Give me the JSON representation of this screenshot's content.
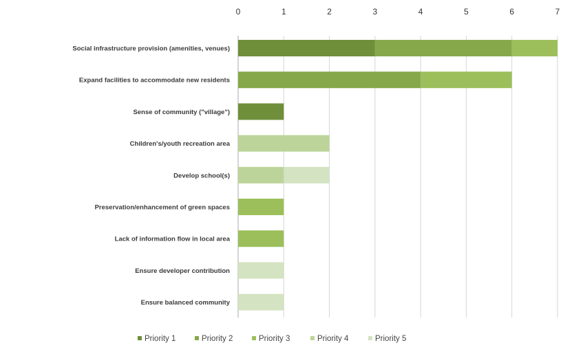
{
  "chart_data": {
    "type": "bar",
    "orientation": "horizontal",
    "stacked": true,
    "title": "",
    "xlabel": "",
    "ylabel": "",
    "xlim": [
      0,
      7
    ],
    "x_ticks": [
      "0",
      "1",
      "2",
      "3",
      "4",
      "5",
      "6",
      "7"
    ],
    "x_axis_position": "top",
    "grid": true,
    "legend_position": "bottom",
    "categories": [
      "Social infrastructure provision (amenities, venues)",
      "Expand facilities to accommodate new residents",
      "Sense of community (\"village\")",
      "Children's/youth recreation area",
      "Develop school(s)",
      "Preservation/enhancement of green spaces",
      "Lack of information flow in local area",
      "Ensure developer contribution",
      "Ensure balanced community"
    ],
    "series": [
      {
        "name": "Priority 1",
        "color": "#6f8f3a",
        "values": [
          3,
          0,
          1,
          0,
          0,
          0,
          0,
          0,
          0
        ]
      },
      {
        "name": "Priority 2",
        "color": "#86a84a",
        "values": [
          3,
          4,
          0,
          0,
          0,
          0,
          0,
          0,
          0
        ]
      },
      {
        "name": "Priority 3",
        "color": "#9cbf5c",
        "values": [
          1,
          2,
          0,
          0,
          0,
          1,
          1,
          0,
          0
        ]
      },
      {
        "name": "Priority 4",
        "color": "#bcd49a",
        "values": [
          0,
          0,
          0,
          2,
          1,
          0,
          0,
          0,
          0
        ]
      },
      {
        "name": "Priority 5",
        "color": "#d4e3c1",
        "values": [
          0,
          0,
          0,
          0,
          1,
          0,
          0,
          1,
          1
        ]
      }
    ]
  }
}
